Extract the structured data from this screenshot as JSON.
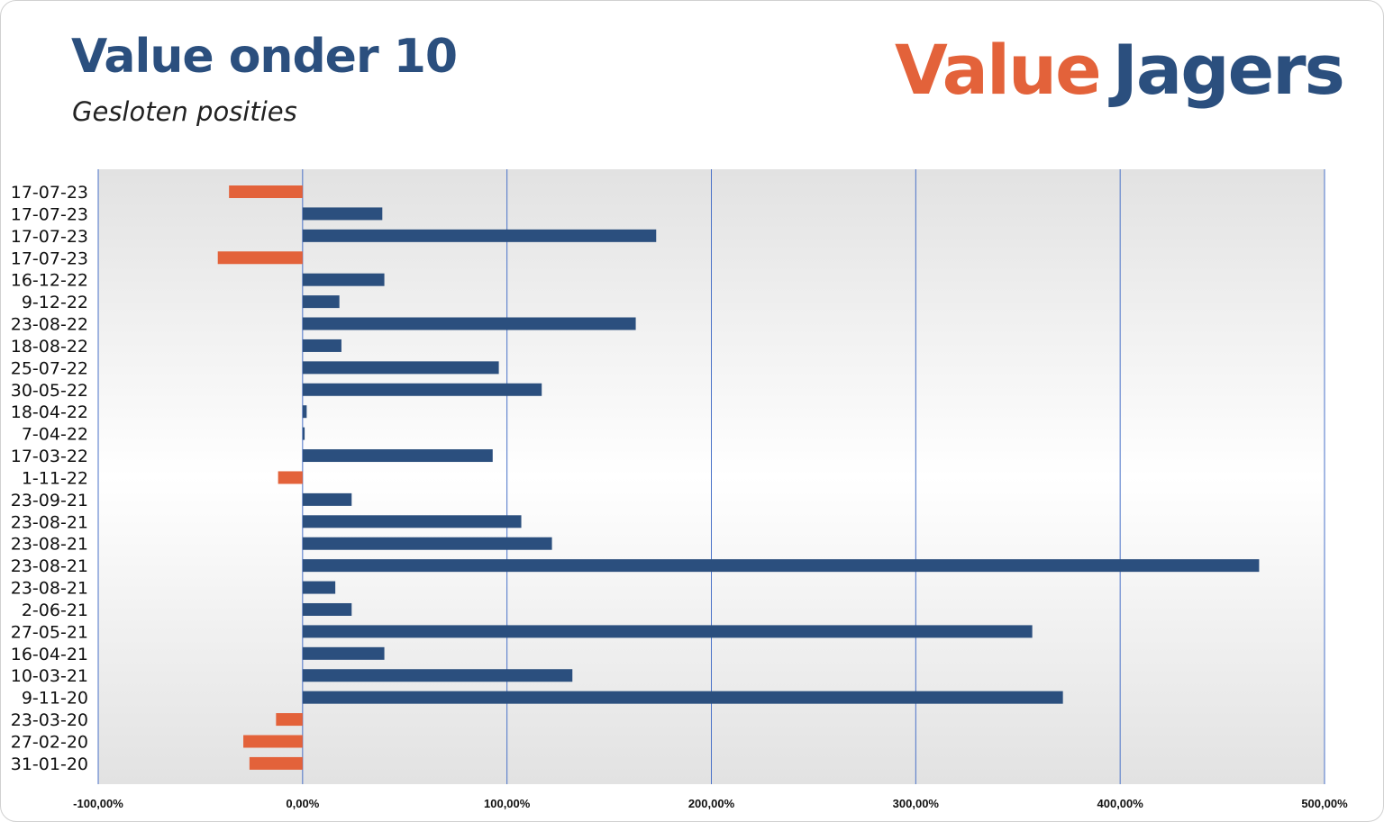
{
  "header": {
    "title": "Value onder 10",
    "subtitle": "Gesloten posities",
    "logo_part1": "Value",
    "logo_part2": "Jagers"
  },
  "colors": {
    "positive": "#2b4f7e",
    "negative": "#e3623a",
    "grid": "#4a72c8"
  },
  "chart_data": {
    "type": "bar",
    "orientation": "horizontal",
    "categories": [
      "17-07-23",
      "17-07-23",
      "17-07-23",
      "17-07-23",
      "16-12-22",
      "9-12-22",
      "23-08-22",
      "18-08-22",
      "25-07-22",
      "30-05-22",
      "18-04-22",
      "7-04-22",
      "17-03-22",
      "1-11-22",
      "23-09-21",
      "23-08-21",
      "23-08-21",
      "23-08-21",
      "23-08-21",
      "2-06-21",
      "27-05-21",
      "16-04-21",
      "10-03-21",
      "9-11-20",
      "23-03-20",
      "27-02-20",
      "31-01-20"
    ],
    "values": [
      -36,
      39,
      173,
      -41.5,
      40,
      18,
      163,
      19,
      96,
      117,
      2,
      1,
      93,
      -12,
      24,
      107,
      122,
      468,
      16,
      24,
      357,
      40,
      132,
      372,
      -13,
      -29,
      -26
    ],
    "unit": "%",
    "xlim": [
      -100,
      500
    ],
    "xticks": [
      "-100,00%",
      "0,00%",
      "100,00%",
      "200,00%",
      "300,00%",
      "400,00%",
      "500,00%"
    ],
    "grid": true,
    "legend": "none"
  }
}
